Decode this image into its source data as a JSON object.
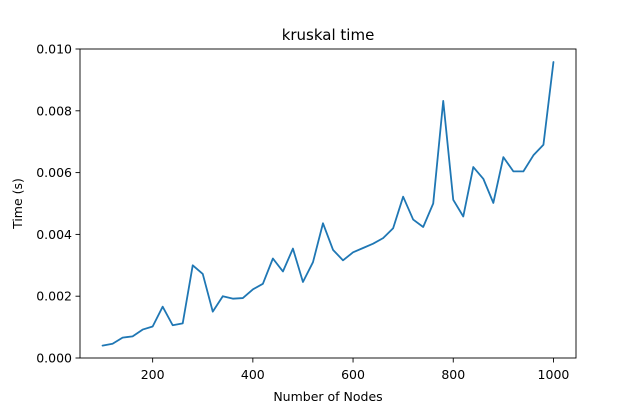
{
  "chart_data": {
    "type": "line",
    "title": "kruskal time",
    "xlabel": "Number of Nodes",
    "ylabel": "Time (s)",
    "xlim": [
      55,
      1045
    ],
    "ylim": [
      0,
      0.01
    ],
    "xticks": [
      200,
      400,
      600,
      800,
      1000
    ],
    "xtick_labels": [
      "200",
      "400",
      "600",
      "800",
      "1000"
    ],
    "yticks": [
      0,
      0.002,
      0.004,
      0.006,
      0.008,
      0.01
    ],
    "ytick_labels": [
      "0.000",
      "0.002",
      "0.004",
      "0.006",
      "0.008",
      "0.010"
    ],
    "grid": false,
    "line_color": "#1f77b4",
    "series": [
      {
        "x": [
          100,
          120,
          140,
          160,
          180,
          200,
          220,
          240,
          260,
          280,
          300,
          320,
          340,
          360,
          380,
          400,
          420,
          440,
          460,
          480,
          500,
          520,
          540,
          560,
          580,
          600,
          620,
          640,
          660,
          680,
          700,
          720,
          740,
          760,
          780,
          800,
          820,
          840,
          860,
          880,
          900,
          920,
          940,
          960,
          980,
          1000
        ],
        "values": [
          0.0004,
          0.00046,
          0.00066,
          0.0007,
          0.00092,
          0.00102,
          0.00166,
          0.00106,
          0.00112,
          0.003,
          0.00272,
          0.0015,
          0.002,
          0.00192,
          0.00194,
          0.00222,
          0.0024,
          0.00322,
          0.0028,
          0.00354,
          0.00246,
          0.0031,
          0.00436,
          0.0035,
          0.00316,
          0.00342,
          0.00356,
          0.0037,
          0.00388,
          0.0042,
          0.00522,
          0.00448,
          0.00424,
          0.005,
          0.00832,
          0.00512,
          0.00458,
          0.00618,
          0.0058,
          0.00502,
          0.0065,
          0.00604,
          0.00604,
          0.00656,
          0.0069,
          0.00958
        ]
      }
    ]
  }
}
